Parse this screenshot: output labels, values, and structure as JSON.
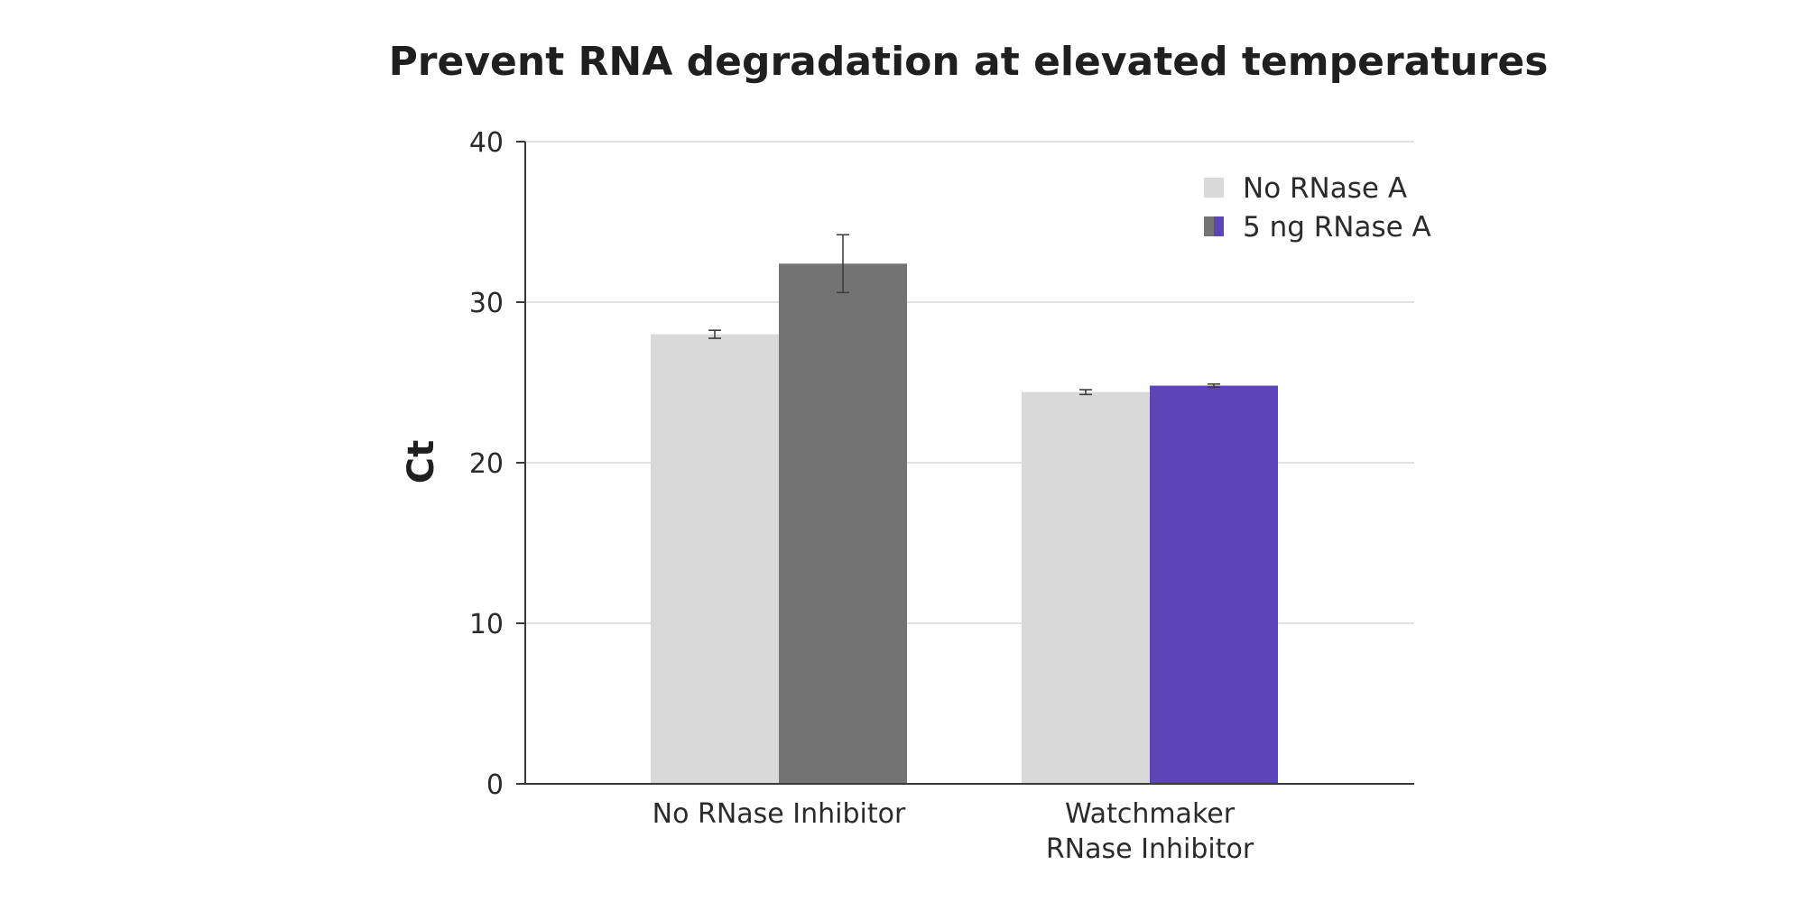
{
  "chart_data": {
    "type": "bar",
    "title": "Prevent RNA degradation at elevated temperatures",
    "xlabel": "",
    "ylabel": "Ct",
    "ylim": [
      0,
      40
    ],
    "yticks": [
      0,
      10,
      20,
      30,
      40
    ],
    "grid": true,
    "legend_position": "top-right",
    "categories": [
      [
        "No RNase Inhibitor"
      ],
      [
        "Watchmaker",
        "RNase Inhibitor"
      ]
    ],
    "series": [
      {
        "name": "No RNase A",
        "values": [
          28.0,
          24.4
        ],
        "errors": [
          0.25,
          0.15
        ],
        "colors": [
          "#d9d9d9",
          "#d9d9d9"
        ]
      },
      {
        "name": "5 ng RNase A",
        "values": [
          32.4,
          24.8
        ],
        "errors": [
          1.8,
          0.1
        ],
        "colors": [
          "#737373",
          "#5b45b8"
        ]
      }
    ]
  }
}
